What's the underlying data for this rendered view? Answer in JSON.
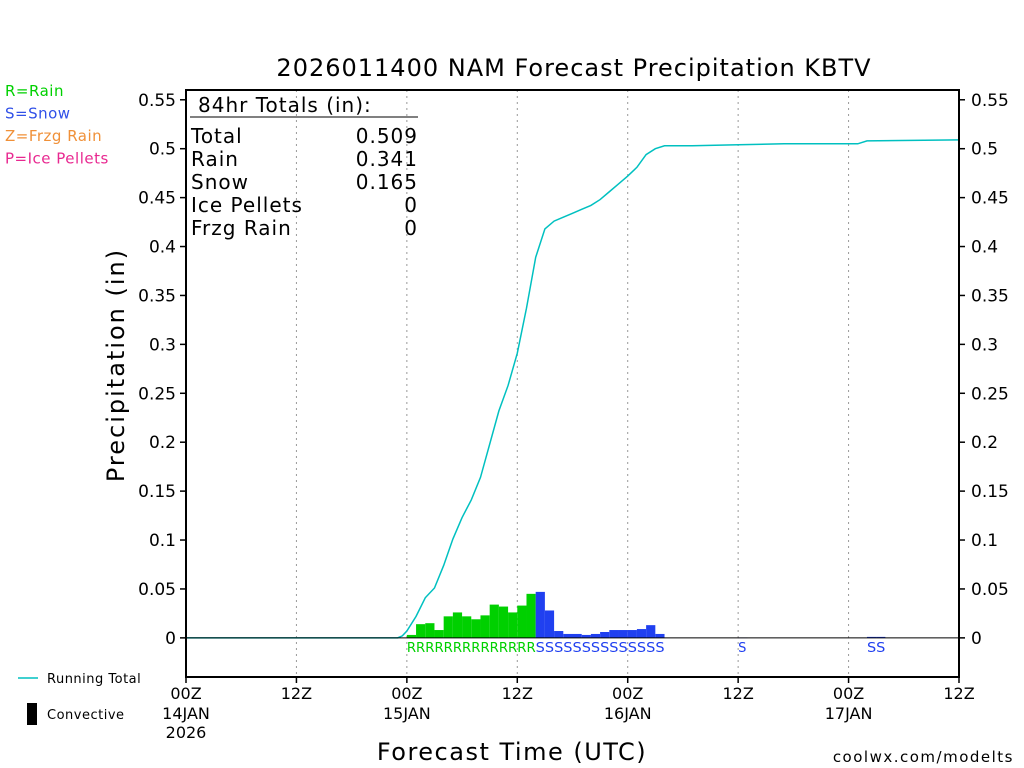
{
  "chart_data": {
    "type": "bar",
    "title": "2026011400 NAM Forecast Precipitation KBTV",
    "xlabel": "Forecast Time (UTC)",
    "ylabel": "Precipitation (in)",
    "ylim": [
      -0.04,
      0.56
    ],
    "y_ticks": [
      0,
      0.05,
      0.1,
      0.15,
      0.2,
      0.25,
      0.3,
      0.35,
      0.4,
      0.45,
      0.5,
      0.55
    ],
    "y_tick_labels": [
      "0",
      "0.05",
      "0.1",
      "0.15",
      "0.2",
      "0.25",
      "0.3",
      "0.35",
      "0.4",
      "0.45",
      "0.5",
      "0.55"
    ],
    "xlim_hours": [
      0,
      84
    ],
    "x_ticks": [
      {
        "hour": 0,
        "label": "00Z",
        "date": "14JAN",
        "year": "2026"
      },
      {
        "hour": 12,
        "label": "12Z",
        "date": "",
        "year": ""
      },
      {
        "hour": 24,
        "label": "00Z",
        "date": "15JAN",
        "year": ""
      },
      {
        "hour": 36,
        "label": "12Z",
        "date": "",
        "year": ""
      },
      {
        "hour": 48,
        "label": "00Z",
        "date": "16JAN",
        "year": ""
      },
      {
        "hour": 60,
        "label": "12Z",
        "date": "",
        "year": ""
      },
      {
        "hour": 72,
        "label": "00Z",
        "date": "17JAN",
        "year": ""
      },
      {
        "hour": 84,
        "label": "12Z",
        "date": "",
        "year": ""
      }
    ],
    "grid": "vertical dotted at 12h",
    "bars": [
      {
        "hour": 24,
        "value": 0.003,
        "type": "R"
      },
      {
        "hour": 25,
        "value": 0.014,
        "type": "R"
      },
      {
        "hour": 26,
        "value": 0.015,
        "type": "R"
      },
      {
        "hour": 27,
        "value": 0.008,
        "type": "R"
      },
      {
        "hour": 28,
        "value": 0.022,
        "type": "R"
      },
      {
        "hour": 29,
        "value": 0.026,
        "type": "R"
      },
      {
        "hour": 30,
        "value": 0.022,
        "type": "R"
      },
      {
        "hour": 31,
        "value": 0.019,
        "type": "R"
      },
      {
        "hour": 32,
        "value": 0.023,
        "type": "R"
      },
      {
        "hour": 33,
        "value": 0.034,
        "type": "R"
      },
      {
        "hour": 34,
        "value": 0.032,
        "type": "R"
      },
      {
        "hour": 35,
        "value": 0.026,
        "type": "R"
      },
      {
        "hour": 36,
        "value": 0.033,
        "type": "R"
      },
      {
        "hour": 37,
        "value": 0.045,
        "type": "R"
      },
      {
        "hour": 38,
        "value": 0.047,
        "type": "S"
      },
      {
        "hour": 39,
        "value": 0.028,
        "type": "S"
      },
      {
        "hour": 40,
        "value": 0.007,
        "type": "S"
      },
      {
        "hour": 41,
        "value": 0.004,
        "type": "S"
      },
      {
        "hour": 42,
        "value": 0.004,
        "type": "S"
      },
      {
        "hour": 43,
        "value": 0.003,
        "type": "S"
      },
      {
        "hour": 44,
        "value": 0.004,
        "type": "S"
      },
      {
        "hour": 45,
        "value": 0.006,
        "type": "S"
      },
      {
        "hour": 46,
        "value": 0.008,
        "type": "S"
      },
      {
        "hour": 47,
        "value": 0.008,
        "type": "S"
      },
      {
        "hour": 48,
        "value": 0.008,
        "type": "S"
      },
      {
        "hour": 49,
        "value": 0.009,
        "type": "S"
      },
      {
        "hour": 50,
        "value": 0.013,
        "type": "S"
      },
      {
        "hour": 51,
        "value": 0.004,
        "type": "S"
      },
      {
        "hour": 60,
        "value": 0.0004,
        "type": "S"
      },
      {
        "hour": 74,
        "value": 0.001,
        "type": "S"
      },
      {
        "hour": 75,
        "value": 0.001,
        "type": "S"
      }
    ],
    "running_total": {
      "name": "Running Total",
      "x": [
        0,
        23,
        23.5,
        24,
        25,
        26,
        27,
        28,
        29,
        30,
        31,
        32,
        33,
        34,
        35,
        36,
        37,
        38,
        39,
        40,
        41,
        42,
        43,
        44,
        45,
        46,
        47,
        48,
        49,
        50,
        51,
        52,
        55,
        60,
        65,
        70,
        72,
        73,
        74,
        84
      ],
      "y": [
        0,
        0,
        0.002,
        0.007,
        0.022,
        0.041,
        0.051,
        0.074,
        0.101,
        0.123,
        0.141,
        0.164,
        0.198,
        0.232,
        0.258,
        0.291,
        0.337,
        0.389,
        0.418,
        0.426,
        0.43,
        0.434,
        0.438,
        0.442,
        0.448,
        0.456,
        0.464,
        0.472,
        0.481,
        0.494,
        0.5,
        0.503,
        0.503,
        0.504,
        0.505,
        0.505,
        0.505,
        0.505,
        0.508,
        0.509
      ],
      "color": "#00c0c0"
    },
    "type_labels": [
      {
        "text": "RRRRRRRRRRRRRR",
        "hour_start": 24,
        "hour_end": 38,
        "type": "R"
      },
      {
        "text": "SSSSSSSSSSSSSS",
        "hour_start": 38,
        "hour_end": 52,
        "type": "S"
      },
      {
        "text": "S",
        "hour_start": 60,
        "hour_end": 61,
        "type": "S"
      },
      {
        "text": "SS",
        "hour_start": 74,
        "hour_end": 76,
        "type": "S"
      }
    ],
    "totals_box": {
      "header": "84hr Totals (in):",
      "rows": [
        {
          "label": "Total",
          "value": "0.509"
        },
        {
          "label": "Rain",
          "value": "0.341"
        },
        {
          "label": "Snow",
          "value": "0.165"
        },
        {
          "label": "Ice Pellets",
          "value": "0"
        },
        {
          "label": "Frzg Rain",
          "value": "0"
        }
      ]
    },
    "type_legend": [
      {
        "text": "R=Rain",
        "color": "#00d000"
      },
      {
        "text": "S=Snow",
        "color": "#3050e8"
      },
      {
        "text": "Z=Frzg Rain",
        "color": "#f09038"
      },
      {
        "text": "P=Ice Pellets",
        "color": "#e82890"
      }
    ],
    "bottom_legend": [
      {
        "text": "Running Total",
        "symbol": "line",
        "color": "#00c0c0"
      },
      {
        "text": "Convective",
        "symbol": "bar",
        "color": "#000000"
      }
    ],
    "colors": {
      "rain": "#00d000",
      "snow": "#2040f0",
      "running_total": "#00c0c0"
    },
    "credit": "coolwx.com/modelts",
    "credit_color": "#e03030"
  }
}
